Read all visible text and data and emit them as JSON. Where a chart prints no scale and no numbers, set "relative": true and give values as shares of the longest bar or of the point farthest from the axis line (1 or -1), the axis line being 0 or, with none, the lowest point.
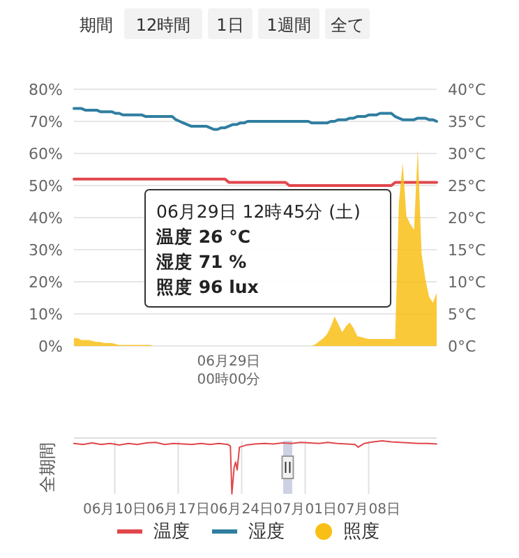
{
  "chart_data": [
    {
      "type": "other",
      "annotations": [
        "期間",
        "12時間",
        "1日",
        "1週間",
        "全て"
      ]
    },
    {
      "type": "line",
      "categories": [
        null,
        null,
        null,
        null,
        null,
        null,
        null,
        null,
        null,
        null,
        null,
        null,
        null,
        null,
        null,
        null,
        null,
        null,
        null,
        null,
        null,
        null,
        null,
        null,
        null,
        null,
        null,
        null,
        null,
        null,
        null,
        null,
        null,
        null,
        null,
        null,
        null,
        null,
        null,
        null,
        null,
        null,
        null,
        null,
        null,
        null,
        null,
        null,
        null,
        null,
        null,
        null,
        null,
        null,
        null,
        null,
        null,
        null,
        null,
        null,
        null,
        null,
        null,
        null,
        null,
        null,
        null,
        null,
        null,
        null,
        null,
        null,
        null,
        null,
        null,
        null,
        null,
        null,
        null,
        null,
        null,
        null,
        null,
        null,
        null,
        null,
        null,
        null,
        null,
        null,
        null,
        null,
        null,
        null,
        null,
        null,
        null
      ],
      "ylim": [
        0,
        80
      ],
      "yticks": [
        {
          "value": 0,
          "label": "0%"
        },
        {
          "value": 10,
          "label": "10%"
        },
        {
          "value": 20,
          "label": "20%"
        },
        {
          "value": 30,
          "label": "30%"
        },
        {
          "value": 40,
          "label": "40%"
        },
        {
          "value": 50,
          "label": "50%"
        },
        {
          "value": 60,
          "label": "60%"
        },
        {
          "value": 70,
          "label": "70%"
        },
        {
          "value": 80,
          "label": "80%"
        }
      ],
      "y2lim": [
        0,
        40
      ],
      "y2ticks": [
        {
          "value": 0,
          "label": "0°C"
        },
        {
          "value": 5,
          "label": "5°C"
        },
        {
          "value": 10,
          "label": "10°C"
        },
        {
          "value": 15,
          "label": "15°C"
        },
        {
          "value": 20,
          "label": "20°C"
        },
        {
          "value": 25,
          "label": "25°C"
        },
        {
          "value": 30,
          "label": "30°C"
        },
        {
          "value": 35,
          "label": "35°C"
        },
        {
          "value": 40,
          "label": "40°C"
        }
      ],
      "grid": "y",
      "legend": "bottom",
      "annotations": [
        "06月29日\n00時00分",
        "06月29日 12時45分 (土)\n温度 26 °C\n湿度 71 %\n照度 96 lux"
      ],
      "series": [
        {
          "name": "温度",
          "type": "line",
          "axis": "y2",
          "color": "#e0474c",
          "values": [
            26,
            26,
            26,
            26,
            26,
            26,
            26,
            26,
            26,
            26,
            26,
            26,
            26,
            26,
            26,
            26,
            26,
            26,
            26,
            26,
            26,
            26,
            26,
            26,
            26,
            26,
            26,
            26,
            26,
            26,
            26,
            26,
            26,
            26,
            26,
            26,
            26,
            26,
            26,
            26,
            26,
            25.5,
            25.5,
            25.5,
            25.5,
            25.5,
            25.5,
            25.5,
            25.5,
            25.5,
            25.5,
            25.5,
            25.5,
            25.5,
            25.5,
            25.5,
            25.5,
            25,
            25,
            25,
            25,
            25,
            25,
            25,
            25,
            25,
            25,
            25,
            25,
            25,
            25,
            25,
            25,
            25,
            25,
            25,
            25,
            25,
            25,
            25,
            25,
            25,
            25,
            25,
            25,
            25.5,
            25.5,
            25.5,
            25.5,
            25.5,
            25.5,
            25.5,
            25.5,
            25.5,
            25.5,
            25.5,
            25.5
          ]
        },
        {
          "name": "湿度",
          "type": "line",
          "axis": "y",
          "color": "#2f7ea0",
          "values": [
            74,
            74,
            74,
            73.5,
            73.5,
            73.5,
            73.5,
            73,
            73,
            73,
            73,
            72.5,
            72.5,
            72,
            72,
            72,
            72,
            72,
            72,
            71.5,
            71.5,
            71.5,
            71.5,
            71.5,
            71.5,
            71.5,
            71.5,
            70.5,
            70,
            69.5,
            69,
            68.5,
            68.5,
            68.5,
            68.5,
            68.5,
            68,
            67.5,
            67.5,
            68,
            68,
            68.5,
            69,
            69,
            69.5,
            69.5,
            70,
            70,
            70,
            70,
            70,
            70,
            70,
            70,
            70,
            70,
            70,
            70,
            70,
            70,
            70,
            70,
            70,
            69.5,
            69.5,
            69.5,
            69.5,
            69.5,
            70,
            70,
            70.5,
            70.5,
            70.5,
            71,
            71,
            71.5,
            71.5,
            71.5,
            72,
            72,
            72,
            72.5,
            72.5,
            72.5,
            72.5,
            71.5,
            71,
            70.5,
            70.5,
            70.5,
            70.5,
            71,
            71,
            71,
            70.5,
            70.5,
            70
          ]
        }
      ]
    },
    {
      "type": "area",
      "relative": true,
      "legend": "bottom",
      "categories": [
        null,
        null,
        null,
        null,
        null,
        null,
        null,
        null,
        null,
        null,
        null,
        null,
        null,
        null,
        null,
        null,
        null,
        null,
        null,
        null,
        null,
        null,
        null,
        null,
        null,
        null,
        null,
        null,
        null,
        null,
        null,
        null,
        null,
        null,
        null,
        null,
        null,
        null,
        null,
        null,
        null,
        null,
        null,
        null,
        null,
        null,
        null,
        null,
        null,
        null,
        null,
        null,
        null,
        null,
        null,
        null,
        null,
        null,
        null,
        null,
        null,
        null,
        null,
        null,
        null,
        null,
        null,
        null,
        null,
        null,
        null,
        null,
        null,
        null,
        null,
        null,
        null,
        null,
        null,
        null,
        null,
        null,
        null,
        null,
        null,
        null,
        null,
        null,
        null,
        null,
        null,
        null,
        null,
        null,
        null,
        null,
        null
      ],
      "series": [
        {
          "name": "照度",
          "color": "#f9bf17",
          "values": [
            0.04,
            0.04,
            0.03,
            0.03,
            0.03,
            0.025,
            0.02,
            0.02,
            0.015,
            0.015,
            0.015,
            0.01,
            0.005,
            0.005,
            0.005,
            0.005,
            0.005,
            0.005,
            0.005,
            0.005,
            0.005,
            0,
            0,
            0,
            0,
            0,
            0,
            0,
            0,
            0,
            0,
            0,
            0,
            0,
            0,
            0,
            0,
            0,
            0,
            0,
            0,
            0,
            0,
            0,
            0,
            0,
            0,
            0,
            0,
            0,
            0,
            0,
            0,
            0,
            0,
            0,
            0,
            0,
            0,
            0,
            0,
            0,
            0,
            0,
            0.01,
            0.025,
            0.04,
            0.06,
            0.1,
            0.15,
            0.11,
            0.07,
            0.1,
            0.12,
            0.09,
            0.05,
            0.045,
            0.04,
            0.035,
            0.035,
            0.035,
            0.035,
            0.035,
            0.035,
            0.035,
            0.035,
            0.73,
            0.93,
            0.66,
            0.62,
            0.59,
            1,
            0.47,
            0.34,
            0.25,
            0.22,
            0.27
          ]
        }
      ]
    },
    {
      "type": "line",
      "ylabel": "全期間",
      "relative": true,
      "grid": "x",
      "xlim": [
        "--06-05T12:00",
        "--07-15T12:00"
      ],
      "xticks": [
        {
          "value": "--06-10",
          "label": "06月10日"
        },
        {
          "value": "--06-17",
          "label": "06月17日"
        },
        {
          "value": "--06-24",
          "label": "06月24日"
        },
        {
          "value": "--07-01",
          "label": "07月01日"
        },
        {
          "value": "--07-08",
          "label": "07月08日"
        }
      ],
      "bands": [
        {
          "axis": "x",
          "from": "--06-28T13:45",
          "to": "--06-29T13:45",
          "color": "#aab4d0"
        }
      ],
      "series": [
        {
          "color": "#e0474c",
          "x": [
            "--06-05T12:00",
            "--06-06T12:00",
            "--06-07T12:00",
            "--06-08T12:00",
            "--06-09T12:00",
            "--06-10T12:00",
            "--06-11T12:00",
            "--06-12T12:00",
            "--06-13T12:00",
            "--06-14T12:00",
            "--06-15T12:00",
            "--06-16T12:00",
            "--06-17T12:00",
            "--06-18T12:00",
            "--06-19T12:00",
            "--06-20T12:00",
            "--06-21T12:00",
            "--06-22T12:00",
            "--06-22T18:00",
            "--06-22T22:00",
            "--06-23T04:00",
            "--06-23T08:00",
            "--06-23T12:00",
            "--06-23T18:00",
            "--06-24T12:00",
            "--06-25T12:00",
            "--06-26T12:00",
            "--06-27T12:00",
            "--06-28T12:00",
            "--06-29T12:00",
            "--06-30T12:00",
            "--07-01T12:00",
            "--07-02T12:00",
            "--07-03T12:00",
            "--07-04T12:00",
            "--07-05T12:00",
            "--07-06T12:00",
            "--07-06T20:00",
            "--07-07T12:00",
            "--07-08T12:00",
            "--07-09T12:00",
            "--07-10T12:00",
            "--07-11T12:00",
            "--07-12T12:00",
            "--07-13T12:00",
            "--07-14T12:00",
            "--07-15T12:00"
          ],
          "values": [
            0.95,
            0.93,
            0.96,
            0.93,
            0.95,
            0.92,
            0.95,
            0.93,
            0.96,
            0.97,
            0.93,
            0.95,
            0.94,
            0.93,
            0.95,
            0.93,
            0.95,
            0.93,
            0.9,
            0,
            0.5,
            0.6,
            0.45,
            0.88,
            0.92,
            0.94,
            0.95,
            0.94,
            0.96,
            0.95,
            0.97,
            0.96,
            0.95,
            0.97,
            0.95,
            0.94,
            0.93,
            0.88,
            0.95,
            0.98,
            1,
            0.98,
            0.97,
            0.96,
            0.95,
            0.95,
            0.94
          ]
        }
      ]
    }
  ]
}
